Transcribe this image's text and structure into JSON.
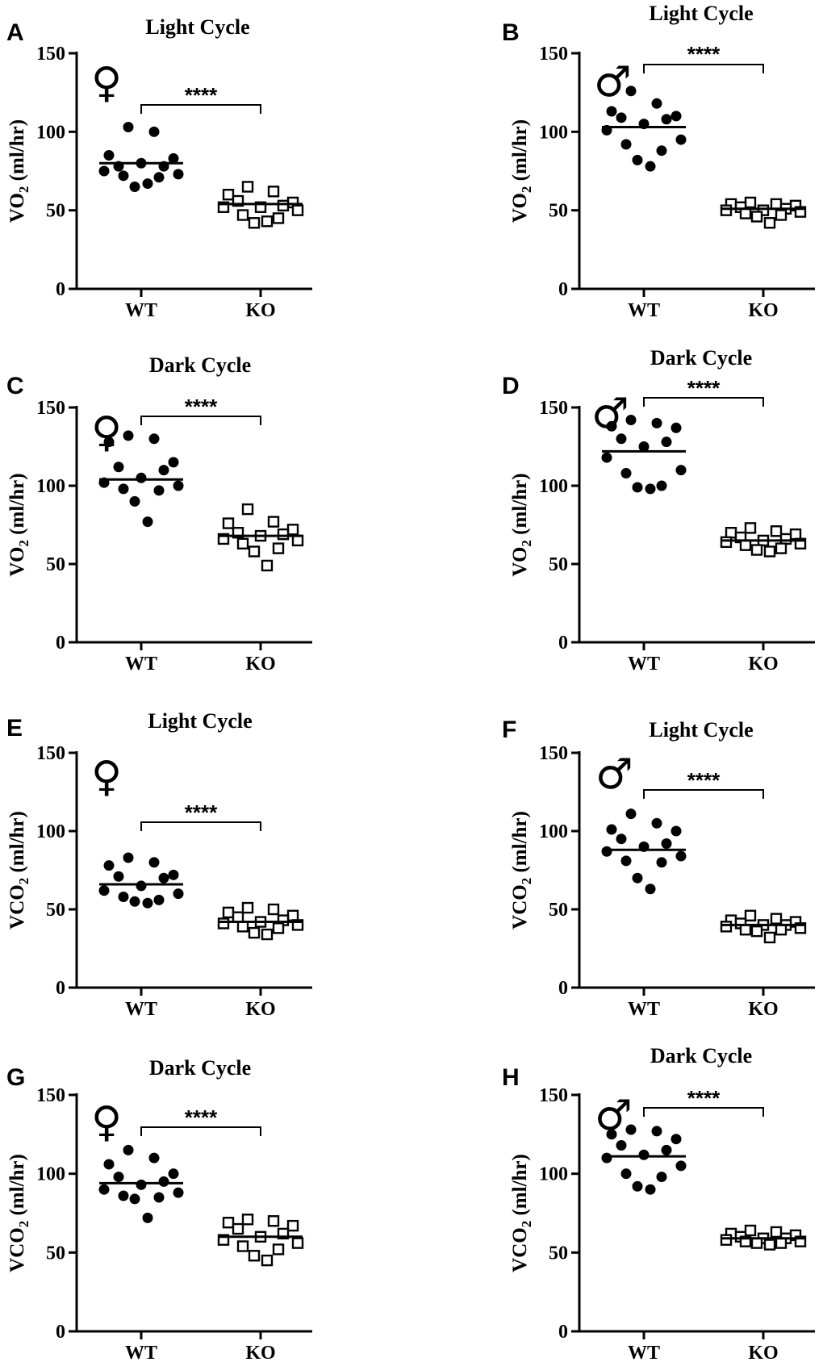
{
  "chart_data": [
    {
      "panel": "A",
      "type": "scatter",
      "title": "Light Cycle",
      "sex": "♀",
      "ylabel_main": "VO",
      "ylabel_sub": "2",
      "ylabel_unit": " (ml/hr)",
      "ylim": [
        0,
        150
      ],
      "yticks": [
        "0",
        "50",
        "100",
        "150"
      ],
      "categories": [
        "WT",
        "KO"
      ],
      "significance": "****",
      "series": [
        {
          "name": "WT",
          "marker": "filled-circle",
          "mean": 80,
          "values": [
            103,
            100,
            85,
            83,
            78,
            78,
            80,
            75,
            73,
            72,
            71,
            65,
            67
          ]
        },
        {
          "name": "KO",
          "marker": "open-square",
          "mean": 54,
          "values": [
            65,
            62,
            60,
            55,
            56,
            53,
            52,
            52,
            50,
            47,
            45,
            42,
            43
          ]
        }
      ]
    },
    {
      "panel": "B",
      "type": "scatter",
      "title": "Light Cycle",
      "sex": "♂",
      "ylabel_main": "VO",
      "ylabel_sub": "2",
      "ylabel_unit": " (ml/hr)",
      "ylim": [
        0,
        150
      ],
      "yticks": [
        "0",
        "50",
        "100",
        "150"
      ],
      "categories": [
        "WT",
        "KO"
      ],
      "significance": "****",
      "series": [
        {
          "name": "WT",
          "marker": "filled-circle",
          "mean": 103,
          "values": [
            126,
            118,
            113,
            110,
            109,
            108,
            105,
            101,
            95,
            92,
            88,
            82,
            78
          ]
        },
        {
          "name": "KO",
          "marker": "open-square",
          "mean": 51,
          "values": [
            55,
            54,
            54,
            53,
            52,
            51,
            50,
            50,
            49,
            48,
            47,
            46,
            42
          ]
        }
      ]
    },
    {
      "panel": "C",
      "type": "scatter",
      "title": "Dark Cycle",
      "sex": "♀",
      "ylabel_main": "VO",
      "ylabel_sub": "2",
      "ylabel_unit": " (ml/hr)",
      "ylim": [
        0,
        150
      ],
      "yticks": [
        "0",
        "50",
        "100",
        "150"
      ],
      "categories": [
        "WT",
        "KO"
      ],
      "significance": "****",
      "series": [
        {
          "name": "WT",
          "marker": "filled-circle",
          "mean": 104,
          "values": [
            132,
            130,
            128,
            115,
            112,
            110,
            105,
            102,
            100,
            98,
            97,
            90,
            77
          ]
        },
        {
          "name": "KO",
          "marker": "open-square",
          "mean": 68,
          "values": [
            85,
            77,
            76,
            72,
            70,
            69,
            68,
            66,
            65,
            63,
            60,
            58,
            49
          ]
        }
      ]
    },
    {
      "panel": "D",
      "type": "scatter",
      "title": "Dark Cycle",
      "sex": "♂",
      "ylabel_main": "VO",
      "ylabel_sub": "2",
      "ylabel_unit": " (ml/hr)",
      "ylim": [
        0,
        150
      ],
      "yticks": [
        "0",
        "50",
        "100",
        "150"
      ],
      "categories": [
        "WT",
        "KO"
      ],
      "significance": "****",
      "series": [
        {
          "name": "WT",
          "marker": "filled-circle",
          "mean": 122,
          "values": [
            142,
            140,
            138,
            137,
            130,
            128,
            125,
            118,
            110,
            108,
            100,
            99,
            98
          ]
        },
        {
          "name": "KO",
          "marker": "open-square",
          "mean": 65,
          "values": [
            73,
            71,
            70,
            69,
            67,
            66,
            65,
            64,
            63,
            62,
            60,
            59,
            58
          ]
        }
      ]
    },
    {
      "panel": "E",
      "type": "scatter",
      "title": "Light Cycle",
      "sex": "♀",
      "ylabel_main": "VCO",
      "ylabel_sub": "2",
      "ylabel_unit": " (ml/hr)",
      "ylim": [
        0,
        150
      ],
      "yticks": [
        "0",
        "50",
        "100",
        "150"
      ],
      "categories": [
        "WT",
        "KO"
      ],
      "significance": "****",
      "series": [
        {
          "name": "WT",
          "marker": "filled-circle",
          "mean": 66,
          "values": [
            83,
            80,
            78,
            72,
            71,
            70,
            65,
            62,
            60,
            58,
            56,
            55,
            54
          ]
        },
        {
          "name": "KO",
          "marker": "open-square",
          "mean": 42,
          "values": [
            51,
            50,
            48,
            46,
            45,
            43,
            42,
            41,
            40,
            39,
            38,
            35,
            34
          ]
        }
      ]
    },
    {
      "panel": "F",
      "type": "scatter",
      "title": "Light Cycle",
      "sex": "♂",
      "ylabel_main": "VCO",
      "ylabel_sub": "2",
      "ylabel_unit": " (ml/hr)",
      "ylim": [
        0,
        150
      ],
      "yticks": [
        "0",
        "50",
        "100",
        "150"
      ],
      "categories": [
        "WT",
        "KO"
      ],
      "significance": "****",
      "series": [
        {
          "name": "WT",
          "marker": "filled-circle",
          "mean": 88,
          "values": [
            111,
            105,
            101,
            100,
            95,
            92,
            90,
            87,
            84,
            81,
            80,
            70,
            63
          ]
        },
        {
          "name": "KO",
          "marker": "open-square",
          "mean": 40,
          "values": [
            46,
            44,
            43,
            42,
            41,
            40,
            40,
            39,
            38,
            37,
            37,
            36,
            32
          ]
        }
      ]
    },
    {
      "panel": "G",
      "type": "scatter",
      "title": "Dark Cycle",
      "sex": "♀",
      "ylabel_main": "VCO",
      "ylabel_sub": "2",
      "ylabel_unit": " (ml/hr)",
      "ylim": [
        0,
        150
      ],
      "yticks": [
        "0",
        "50",
        "100",
        "150"
      ],
      "categories": [
        "WT",
        "KO"
      ],
      "significance": "****",
      "series": [
        {
          "name": "WT",
          "marker": "filled-circle",
          "mean": 94,
          "values": [
            115,
            110,
            106,
            100,
            98,
            95,
            93,
            90,
            88,
            86,
            85,
            84,
            72
          ]
        },
        {
          "name": "KO",
          "marker": "open-square",
          "mean": 60,
          "values": [
            71,
            70,
            69,
            67,
            65,
            62,
            60,
            58,
            56,
            54,
            52,
            48,
            45
          ]
        }
      ]
    },
    {
      "panel": "H",
      "type": "scatter",
      "title": "Dark Cycle",
      "sex": "♂",
      "ylabel_main": "VCO",
      "ylabel_sub": "2",
      "ylabel_unit": " (ml/hr)",
      "ylim": [
        0,
        150
      ],
      "yticks": [
        "0",
        "50",
        "100",
        "150"
      ],
      "categories": [
        "WT",
        "KO"
      ],
      "significance": "****",
      "series": [
        {
          "name": "WT",
          "marker": "filled-circle",
          "mean": 111,
          "values": [
            128,
            127,
            125,
            122,
            118,
            115,
            112,
            110,
            105,
            100,
            98,
            92,
            90
          ]
        },
        {
          "name": "KO",
          "marker": "open-square",
          "mean": 59,
          "values": [
            64,
            63,
            62,
            61,
            60,
            59,
            59,
            58,
            57,
            57,
            56,
            56,
            55
          ]
        }
      ]
    }
  ]
}
